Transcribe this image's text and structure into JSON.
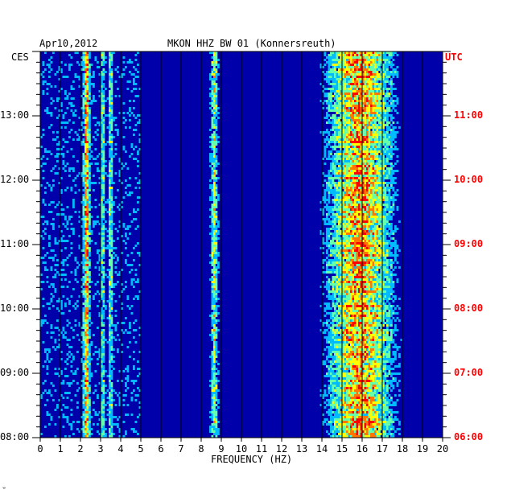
{
  "header": {
    "date": "Apr10,2012",
    "station": "MKON HHZ BW 01 (Konnersreuth)",
    "tz_left": "CES",
    "tz_right": "UTC"
  },
  "footer_mark": "ʷ",
  "chart_data": {
    "type": "heatmap",
    "title": "MKON HHZ BW 01 (Konnersreuth)",
    "subtitle": "Apr10,2012",
    "xlabel": "FREQUENCY (HZ)",
    "xlim": [
      0,
      20
    ],
    "x_ticks": [
      "0",
      "1",
      "2",
      "3",
      "4",
      "5",
      "6",
      "7",
      "8",
      "9",
      "10",
      "11",
      "12",
      "13",
      "14",
      "15",
      "16",
      "17",
      "18",
      "19",
      "20"
    ],
    "ylabel_left": "CES",
    "ylabel_right": "UTC",
    "y_ticks_left": [
      "13:00",
      "12:00",
      "11:00",
      "10:00",
      "09:00",
      "08:00"
    ],
    "y_ticks_right": [
      "11:00",
      "10:00",
      "09:00",
      "08:00",
      "07:00",
      "06:00"
    ],
    "y_tick_values_hours_ces": [
      13,
      12,
      11,
      10,
      9,
      8
    ],
    "ylim_hours_ces": [
      8.0,
      14.0
    ],
    "color_scale": [
      "#0000aa",
      "#0044ff",
      "#00bbff",
      "#66ffaa",
      "#ffff00",
      "#ff7700",
      "#ff0000"
    ],
    "bands": [
      {
        "freq_hz": [
          2.1,
          2.5
        ],
        "intensity": "high"
      },
      {
        "freq_hz": [
          3.0,
          3.2
        ],
        "intensity": "moderate"
      },
      {
        "freq_hz": [
          3.4,
          3.6
        ],
        "intensity": "moderate"
      },
      {
        "freq_hz": [
          8.4,
          8.9
        ],
        "intensity": "moderate"
      },
      {
        "freq_hz": [
          13.8,
          18.0
        ],
        "intensity": "high"
      }
    ],
    "grid": true
  }
}
